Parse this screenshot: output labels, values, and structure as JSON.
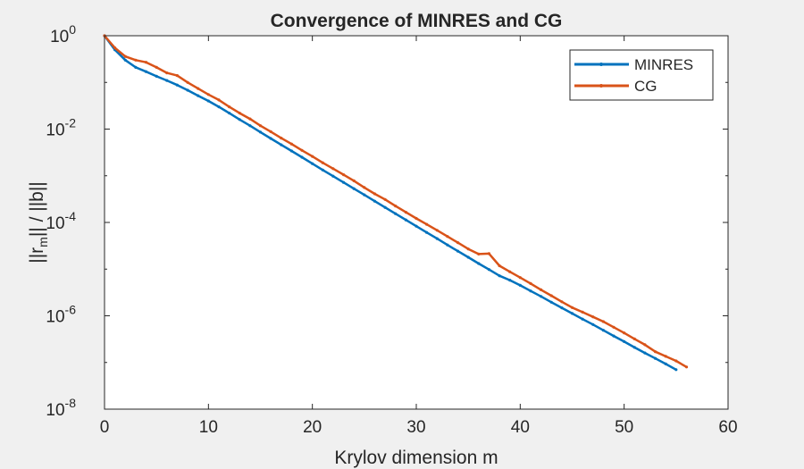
{
  "chart_data": {
    "type": "line",
    "title": "Convergence of MINRES and CG",
    "xlabel": "Krylov dimension m",
    "ylabel": "||r||/||b||",
    "ylabel_base": "||r",
    "ylabel_sub": "m",
    "ylabel_rest": "|| / ||b||",
    "xlim": [
      0,
      60
    ],
    "ylim": [
      1e-08,
      1
    ],
    "yscale": "log",
    "xticks": [
      0,
      10,
      20,
      30,
      40,
      50,
      60
    ],
    "yticks": [
      {
        "base": "10",
        "exp": "0",
        "value": 1
      },
      {
        "base": "10",
        "exp": "-2",
        "value": 0.01
      },
      {
        "base": "10",
        "exp": "-4",
        "value": 0.0001
      },
      {
        "base": "10",
        "exp": "-6",
        "value": 1e-06
      },
      {
        "base": "10",
        "exp": "-8",
        "value": 1e-08
      }
    ],
    "grid": false,
    "legend_position": "top-right",
    "series": [
      {
        "name": "MINRES",
        "color": "#0072BD",
        "x": [
          0,
          1,
          2,
          3,
          4,
          5,
          6,
          7,
          8,
          9,
          10,
          11,
          12,
          13,
          14,
          15,
          16,
          17,
          18,
          19,
          20,
          21,
          22,
          23,
          24,
          25,
          26,
          27,
          28,
          29,
          30,
          31,
          32,
          33,
          34,
          35,
          36,
          37,
          38,
          39,
          40,
          41,
          42,
          43,
          44,
          45,
          46,
          47,
          48,
          49,
          50,
          51,
          52,
          53,
          54,
          55
        ],
        "y": [
          1,
          0.5,
          0.3,
          0.21,
          0.17,
          0.135,
          0.11,
          0.088,
          0.068,
          0.052,
          0.04,
          0.03,
          0.022,
          0.016,
          0.0118,
          0.0086,
          0.0063,
          0.0046,
          0.0034,
          0.0025,
          0.00182,
          0.00133,
          0.00098,
          0.00072,
          0.00053,
          0.00039,
          0.000285,
          0.00021,
          0.000154,
          0.000113,
          8.3e-05,
          6.1e-05,
          4.5e-05,
          3.3e-05,
          2.43e-05,
          1.79e-05,
          1.32e-05,
          9.8e-06,
          7.2e-06,
          5.8e-06,
          4.5e-06,
          3.4e-06,
          2.6e-06,
          1.95e-06,
          1.48e-06,
          1.12e-06,
          8.5e-07,
          6.5e-07,
          4.9e-07,
          3.7e-07,
          2.8e-07,
          2.1e-07,
          1.6e-07,
          1.22e-07,
          9.3e-08,
          7e-08
        ]
      },
      {
        "name": "CG",
        "color": "#D95319",
        "x": [
          0,
          1,
          2,
          3,
          4,
          5,
          6,
          7,
          8,
          9,
          10,
          11,
          12,
          13,
          14,
          15,
          16,
          17,
          18,
          19,
          20,
          21,
          22,
          23,
          24,
          25,
          26,
          27,
          28,
          29,
          30,
          31,
          32,
          33,
          34,
          35,
          36,
          37,
          38,
          39,
          40,
          41,
          42,
          43,
          44,
          45,
          46,
          47,
          48,
          49,
          50,
          51,
          52,
          53,
          54,
          55,
          56
        ],
        "y": [
          1,
          0.55,
          0.36,
          0.3,
          0.27,
          0.21,
          0.16,
          0.14,
          0.1,
          0.074,
          0.055,
          0.042,
          0.03,
          0.022,
          0.0165,
          0.0118,
          0.0088,
          0.0064,
          0.0048,
          0.0035,
          0.0026,
          0.0019,
          0.00142,
          0.00105,
          0.00078,
          0.00056,
          0.00041,
          0.00031,
          0.000225,
          0.000165,
          0.000122,
          9.1e-05,
          6.8e-05,
          5e-05,
          3.7e-05,
          2.7e-05,
          2.1e-05,
          2.15e-05,
          1.18e-05,
          8.8e-06,
          6.6e-06,
          4.9e-06,
          3.6e-06,
          2.7e-06,
          2e-06,
          1.5e-06,
          1.2e-06,
          9.5e-07,
          7.5e-07,
          5.7e-07,
          4.3e-07,
          3.2e-07,
          2.4e-07,
          1.7e-07,
          1.35e-07,
          1.08e-07,
          8e-08
        ]
      }
    ]
  }
}
